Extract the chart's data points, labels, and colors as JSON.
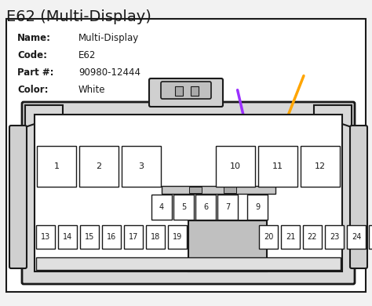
{
  "title": "E62 (Multi-Display)",
  "info_labels": [
    "Name:",
    "Code:",
    "Part #:",
    "Color:"
  ],
  "info_values": [
    "Multi-Display",
    "E62",
    "90980-12444",
    "White"
  ],
  "arrow_purple": "#9B30FF",
  "arrow_orange": "#FFA500",
  "bg_color": "#f2f2f2",
  "connector_bg": "#ffffff",
  "border_color": "#1a1a1a",
  "text_color": "#1a1a1a",
  "title_fontsize": 14,
  "info_fontsize": 8.5,
  "pin_fontsize_big": 8,
  "pin_fontsize_small": 7
}
